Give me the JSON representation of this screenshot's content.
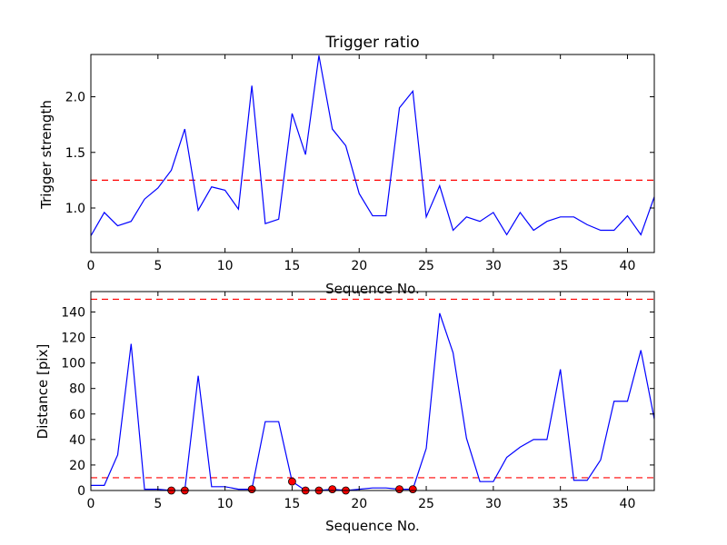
{
  "chart_data": [
    {
      "type": "line",
      "title": "Trigger ratio",
      "xlabel": "Sequence No.",
      "ylabel": "Trigger strength",
      "xlim": [
        0,
        42
      ],
      "ylim": [
        0.6,
        2.38
      ],
      "xticks": [
        0,
        5,
        10,
        15,
        20,
        25,
        30,
        35,
        40
      ],
      "xtick_labels": [
        "0",
        "5",
        "10",
        "15",
        "20",
        "25",
        "30",
        "35",
        "40"
      ],
      "yticks": [
        1.0,
        1.5,
        2.0
      ],
      "ytick_labels": [
        "1.0",
        "1.5",
        "2.0"
      ],
      "grid": false,
      "line_color": "#0000ff",
      "threshold_color": "#ff0000",
      "thresholds": [
        1.25
      ],
      "x": [
        0,
        1,
        2,
        3,
        4,
        5,
        6,
        7,
        8,
        9,
        10,
        11,
        12,
        13,
        14,
        15,
        16,
        17,
        18,
        19,
        20,
        21,
        22,
        23,
        24,
        25,
        26,
        27,
        28,
        29,
        30,
        31,
        32,
        33,
        34,
        35,
        36,
        37,
        38,
        39,
        40,
        41,
        42
      ],
      "y": [
        0.75,
        0.96,
        0.84,
        0.88,
        1.08,
        1.18,
        1.34,
        1.71,
        0.98,
        1.19,
        1.16,
        0.99,
        2.1,
        0.86,
        0.9,
        1.85,
        1.48,
        2.37,
        1.71,
        1.56,
        1.13,
        0.93,
        0.93,
        1.9,
        2.05,
        0.92,
        1.2,
        0.8,
        0.92,
        0.88,
        0.96,
        0.76,
        0.96,
        0.8,
        0.88,
        0.92,
        0.92,
        0.85,
        0.8,
        0.8,
        0.93,
        0.76,
        1.1
      ]
    },
    {
      "type": "line",
      "title": "",
      "xlabel": "Sequence No.",
      "ylabel": "Distance [pix]",
      "xlim": [
        0,
        42
      ],
      "ylim": [
        0,
        156
      ],
      "xticks": [
        0,
        5,
        10,
        15,
        20,
        25,
        30,
        35,
        40
      ],
      "xtick_labels": [
        "0",
        "5",
        "10",
        "15",
        "20",
        "25",
        "30",
        "35",
        "40"
      ],
      "yticks": [
        0,
        20,
        40,
        60,
        80,
        100,
        120,
        140
      ],
      "ytick_labels": [
        "0",
        "20",
        "40",
        "60",
        "80",
        "100",
        "120",
        "140"
      ],
      "grid": false,
      "line_color": "#0000ff",
      "threshold_color": "#ff0000",
      "marker_color": "#ff0000",
      "thresholds": [
        10,
        150
      ],
      "x": [
        0,
        1,
        2,
        3,
        4,
        5,
        6,
        7,
        8,
        9,
        10,
        11,
        12,
        13,
        14,
        15,
        16,
        17,
        18,
        19,
        20,
        21,
        22,
        23,
        24,
        25,
        26,
        27,
        28,
        29,
        30,
        31,
        32,
        33,
        34,
        35,
        36,
        37,
        38,
        39,
        40,
        41,
        42
      ],
      "y": [
        4,
        4,
        28,
        115,
        1,
        1,
        0,
        0,
        90,
        3,
        3,
        1,
        1,
        54,
        54,
        7,
        0,
        0,
        1,
        0,
        1,
        2,
        2,
        1,
        1,
        33,
        139,
        108,
        41,
        7,
        7,
        26,
        34,
        40,
        40,
        95,
        8,
        8,
        24,
        70,
        70,
        110,
        56
      ],
      "markers": {
        "x": [
          6,
          7,
          12,
          15,
          16,
          17,
          18,
          19,
          23,
          24
        ],
        "y": [
          0,
          0,
          1,
          7,
          0,
          0,
          1,
          0,
          1,
          1
        ]
      }
    }
  ]
}
